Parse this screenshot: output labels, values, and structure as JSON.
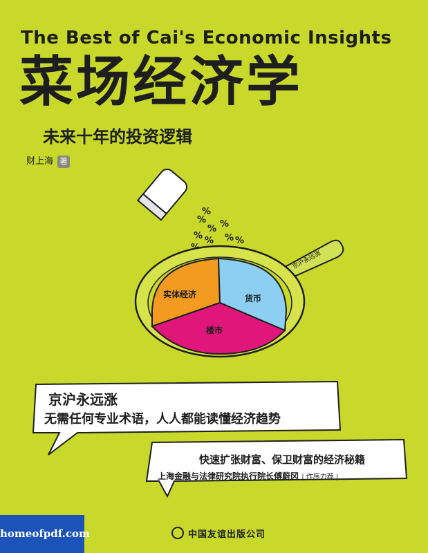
{
  "cover": {
    "english_title": "The Best of Cai's Economic Insights",
    "title": "菜场经济学",
    "subtitle": "未来十年的投资逻辑",
    "author": "财上海",
    "author_badge": "著",
    "pan_segments": [
      "实体经济",
      "货币",
      "楼市"
    ],
    "pan_handle_text": "京沪永远涨",
    "percent_symbol": "%",
    "bubble1_line1": "京沪永远涨",
    "bubble1_line2": "无需任何专业术语，人人都能读懂经济趋势",
    "bubble2_line1": "快速扩张财富、保卫财富的经济秘籍",
    "bubble2_line2": "上海金融与法律研究院执行院长傅蔚冈",
    "bubble2_tag": "| 作序力荐 |",
    "publisher": "中国友谊出版公司",
    "watermark": "homeofpdf.com",
    "colors": {
      "background": "#c8d92b",
      "orange": "#f39a21",
      "blue": "#8ccff2",
      "magenta": "#e0167a",
      "ink": "#1e1e1e",
      "watermark_bg": "#1c53b8"
    }
  }
}
